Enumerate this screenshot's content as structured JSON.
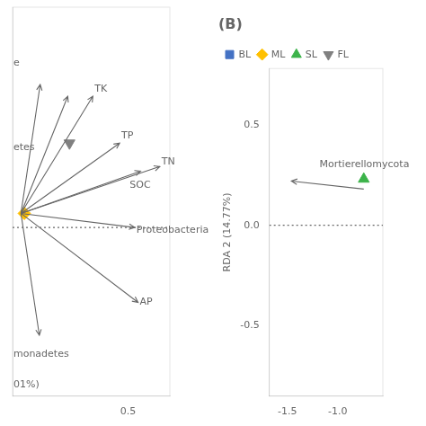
{
  "chart_data": [
    {
      "type": "scatter",
      "xlim": [
        -0.88,
        1.0
      ],
      "ylim": [
        -0.78,
        0.88
      ],
      "xticks": [
        0.5
      ],
      "yticks": [],
      "tick_labels": "x",
      "grid": false,
      "reference_line": {
        "y": -0.06,
        "line_style": "dotted"
      },
      "arrows": [
        {
          "from": [
            -0.78,
            0.0
          ],
          "to": [
            -0.55,
            0.55
          ]
        },
        {
          "from": [
            -0.78,
            0.0
          ],
          "to": [
            0.08,
            0.5
          ],
          "label": "TK",
          "label_x": 0.1,
          "label_y": 0.53
        },
        {
          "from": [
            -0.78,
            0.0
          ],
          "to": [
            0.4,
            0.3
          ],
          "label": "TP",
          "label_x": 0.42,
          "label_y": 0.33
        },
        {
          "from": [
            -0.78,
            0.0
          ],
          "to": [
            0.88,
            0.2
          ],
          "label": "TN",
          "label_x": 0.9,
          "label_y": 0.22
        },
        {
          "from": [
            -0.78,
            0.0
          ],
          "to": [
            0.65,
            0.18
          ],
          "label": "SOC",
          "label_x": 0.52,
          "label_y": 0.12
        },
        {
          "from": [
            -0.78,
            0.0
          ],
          "to": [
            0.62,
            -0.38
          ],
          "label": "AP",
          "label_x": 0.64,
          "label_y": -0.38
        },
        {
          "from": [
            -0.78,
            0.0
          ],
          "to": [
            0.58,
            -0.06
          ],
          "label": "Proteobacteria",
          "label_x": 0.6,
          "label_y": -0.07
        },
        {
          "from": [
            -0.78,
            0.0
          ],
          "to": [
            -0.56,
            -0.52
          ]
        },
        {
          "from": [
            -0.78,
            0.0
          ],
          "to": [
            -0.22,
            0.5
          ]
        }
      ],
      "annotations": [
        {
          "text": "e",
          "x": -0.87,
          "y": 0.64
        },
        {
          "text": "etes",
          "x": -0.87,
          "y": 0.28
        },
        {
          "text": "monadetes",
          "x": -0.87,
          "y": -0.6
        },
        {
          "text": "01%)",
          "x": -0.87,
          "y": -0.73
        }
      ],
      "series": [
        {
          "name": "ML",
          "color": "#ffc000",
          "marker": "diamond",
          "x": [
            -0.74
          ],
          "values": [
            0.0
          ]
        },
        {
          "name": "FL",
          "color": "#808080",
          "marker": "triangle-down",
          "x": [
            -0.2
          ],
          "values": [
            0.3
          ]
        }
      ]
    },
    {
      "type": "scatter",
      "title": "(B)",
      "ylabel": "RDA 2 (14.77%)",
      "xlim": [
        -1.68,
        -0.55
      ],
      "ylim": [
        -0.85,
        0.78
      ],
      "xticks": [
        -1.5,
        {
          "value": -1.0,
          "label": "-1.0"
        }
      ],
      "yticks": [
        -0.5,
        {
          "value": 0.0,
          "label": "0.0"
        },
        0.5
      ],
      "grid": false,
      "legend": "upper left",
      "reference_line": {
        "y": 0.0,
        "line_style": "dotted"
      },
      "arrows": [
        {
          "from": [
            -0.74,
            0.18
          ],
          "to": [
            -1.46,
            0.22
          ],
          "label": "Mortierellomycota",
          "label_x": -1.18,
          "label_y": 0.3
        }
      ],
      "series": [
        {
          "name": "BL",
          "color": "#4472c4",
          "marker": "square",
          "x": [],
          "values": []
        },
        {
          "name": "ML",
          "color": "#ffc000",
          "marker": "diamond",
          "x": [],
          "values": []
        },
        {
          "name": "SL",
          "color": "#3cb34a",
          "marker": "triangle-up",
          "x": [
            -0.74
          ],
          "values": [
            0.23
          ]
        },
        {
          "name": "FL",
          "color": "#808080",
          "marker": "triangle-down",
          "x": [],
          "values": []
        }
      ]
    }
  ]
}
